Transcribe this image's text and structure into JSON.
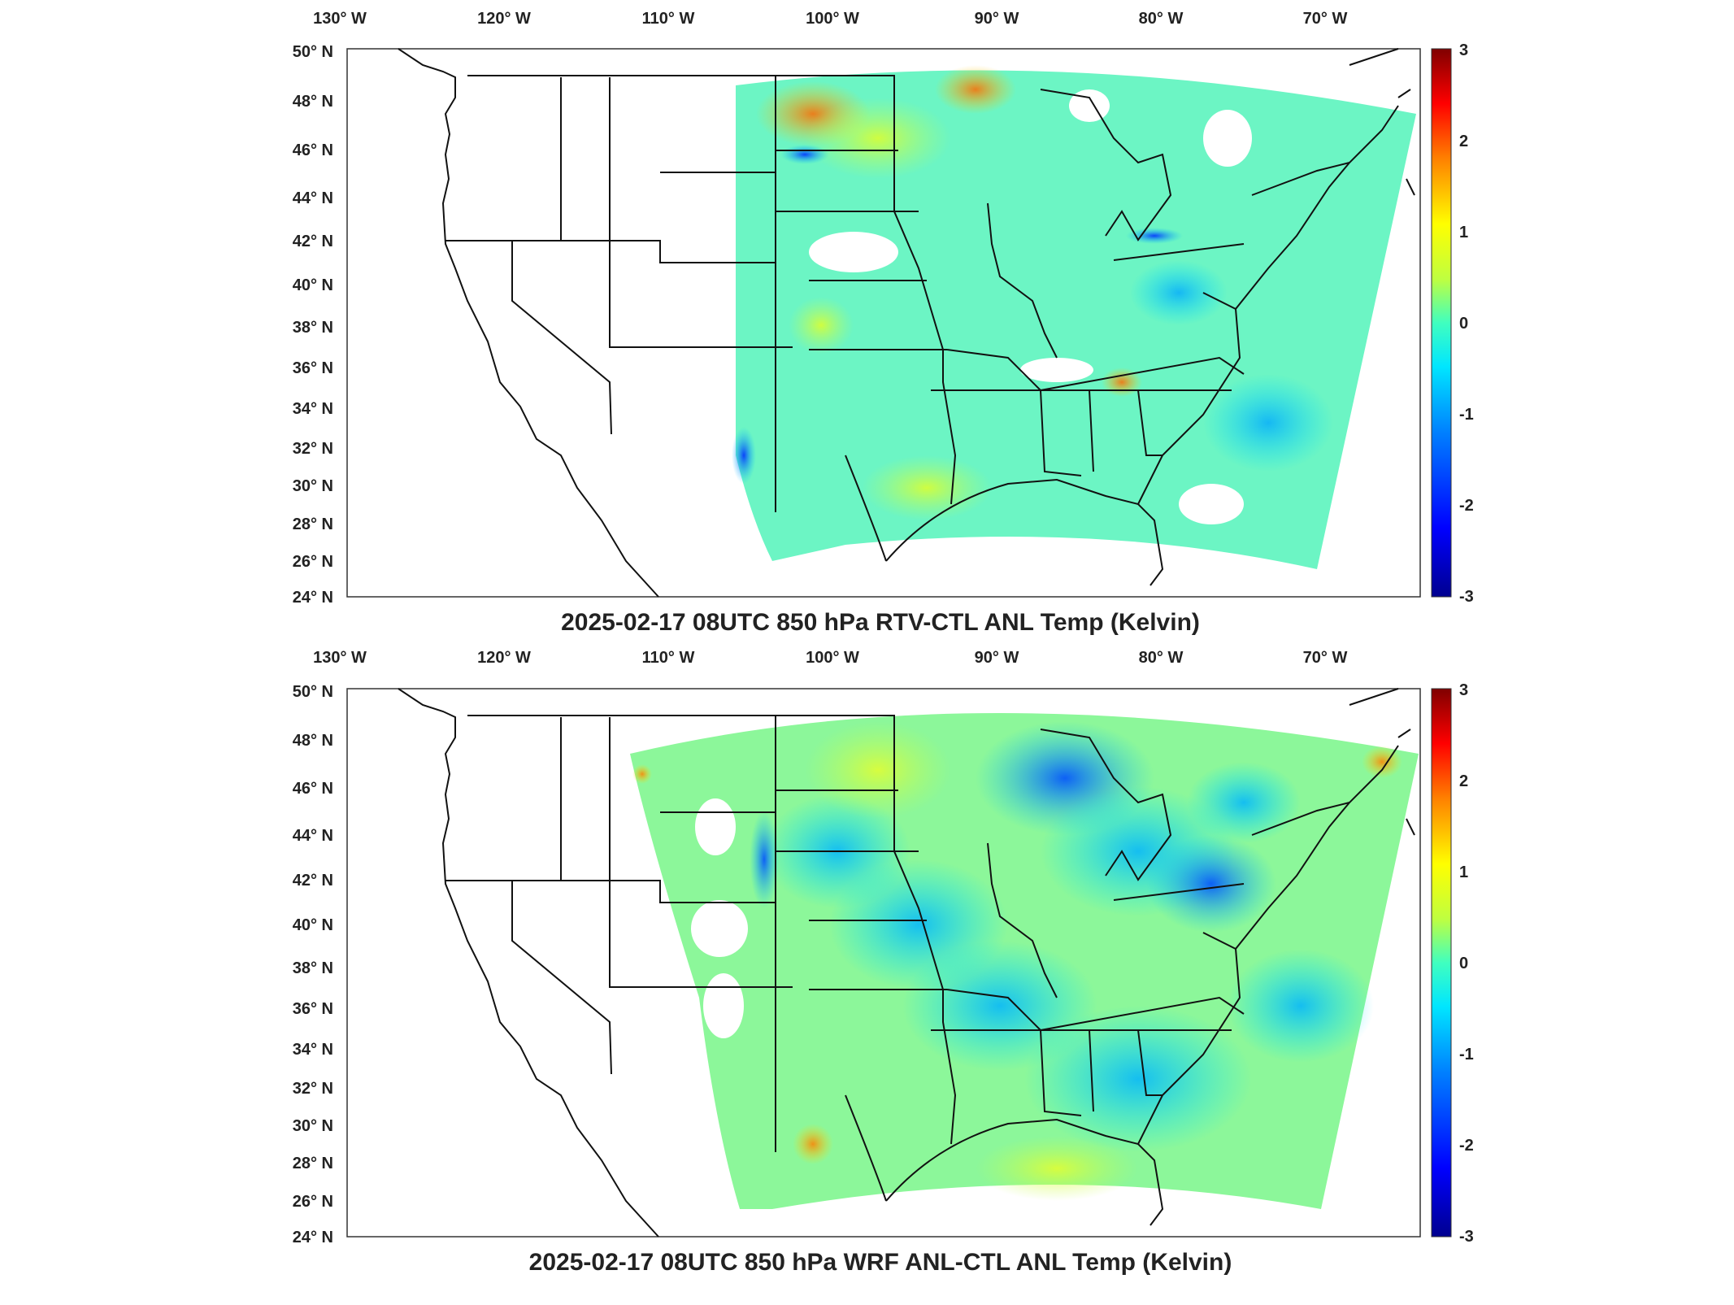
{
  "panels": [
    {
      "id": "rtv",
      "title": "2025-02-17 08UTC 850 hPa RTV-CTL ANL Temp (Kelvin)",
      "lon_labels": [
        "130° W",
        "120° W",
        "110° W",
        "100° W",
        "90° W",
        "80° W",
        "70° W"
      ],
      "lat_labels": [
        "50° N",
        "48° N",
        "46° N",
        "44° N",
        "42° N",
        "40° N",
        "38° N",
        "36° N",
        "34° N",
        "32° N",
        "30° N",
        "28° N",
        "26° N",
        "24° N"
      ],
      "colorbar_ticks": [
        "3",
        "2",
        "1",
        "0",
        "-1",
        "-2",
        "-3"
      ],
      "colorbar_range": [
        -3,
        3
      ]
    },
    {
      "id": "wrf",
      "title": "2025-02-17 08UTC 850 hPa WRF ANL-CTL ANL Temp (Kelvin)",
      "lon_labels": [
        "130° W",
        "120° W",
        "110° W",
        "100° W",
        "90° W",
        "80° W",
        "70° W"
      ],
      "lat_labels": [
        "50° N",
        "48° N",
        "46° N",
        "44° N",
        "42° N",
        "40° N",
        "38° N",
        "36° N",
        "34° N",
        "32° N",
        "30° N",
        "28° N",
        "26° N",
        "24° N"
      ],
      "colorbar_ticks": [
        "3",
        "2",
        "1",
        "0",
        "-1",
        "-2",
        "-3"
      ],
      "colorbar_range": [
        -3,
        3
      ]
    }
  ],
  "colormap": [
    "#00008f",
    "#0000ff",
    "#0080ff",
    "#00ffff",
    "#80ff80",
    "#ffff00",
    "#ff8000",
    "#ff0000",
    "#800000"
  ]
}
